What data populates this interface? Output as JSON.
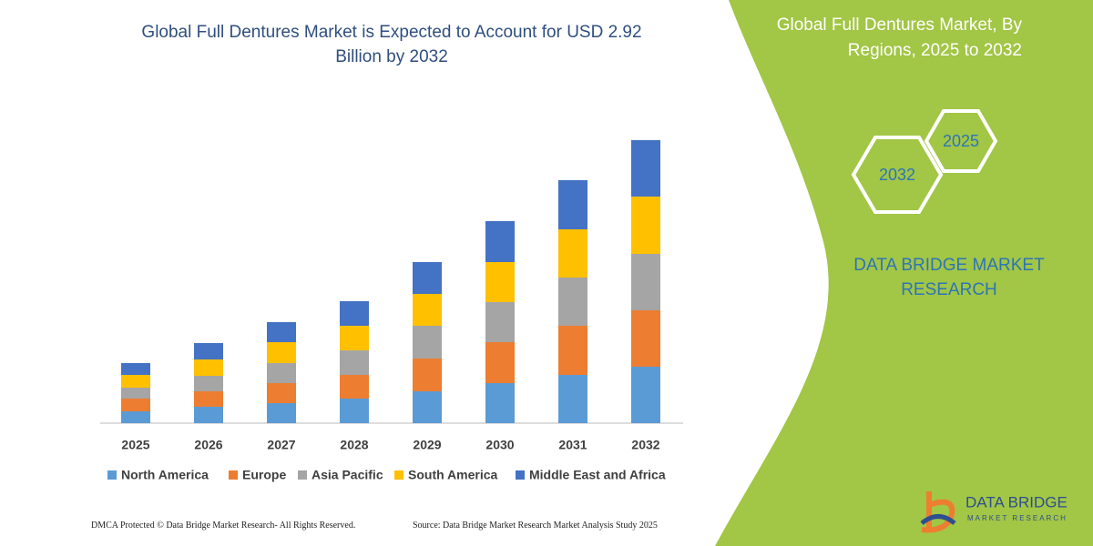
{
  "chart_data": {
    "type": "bar",
    "stacked": true,
    "title": "Global Full Dentures Market is Expected to Account for USD 2.92 Billion by 2032",
    "categories": [
      "2025",
      "2026",
      "2027",
      "2028",
      "2029",
      "2030",
      "2031",
      "2032"
    ],
    "series": [
      {
        "name": "North America",
        "color": "#5b9bd5",
        "values": [
          13,
          18,
          22,
          27,
          35,
          44,
          53,
          62
        ]
      },
      {
        "name": "Europe",
        "color": "#ed7d31",
        "values": [
          14,
          17,
          22,
          26,
          36,
          45,
          54,
          62
        ]
      },
      {
        "name": "Asia Pacific",
        "color": "#a5a5a5",
        "values": [
          12,
          17,
          22,
          27,
          36,
          44,
          53,
          62
        ]
      },
      {
        "name": "South America",
        "color": "#ffc000",
        "values": [
          14,
          18,
          23,
          27,
          35,
          44,
          53,
          63
        ]
      },
      {
        "name": "Middle East and Africa",
        "color": "#4472c4",
        "values": [
          13,
          18,
          22,
          27,
          35,
          45,
          54,
          62
        ]
      }
    ],
    "ylim": [
      0,
      320
    ]
  },
  "panel": {
    "title": "Global Full Dentures Market, By Regions, 2025 to 2032",
    "hexagons": [
      "2025",
      "2032"
    ],
    "brand": "DATA BRIDGE MARKET RESEARCH",
    "logo": {
      "name": "DATA BRIDGE",
      "tagline": "MARKET RESEARCH"
    }
  },
  "footer": {
    "left": "DMCA Protected © Data Bridge Market Research- All Rights Reserved.",
    "right": "Source: Data Bridge Market Research Market Analysis Study 2025"
  }
}
